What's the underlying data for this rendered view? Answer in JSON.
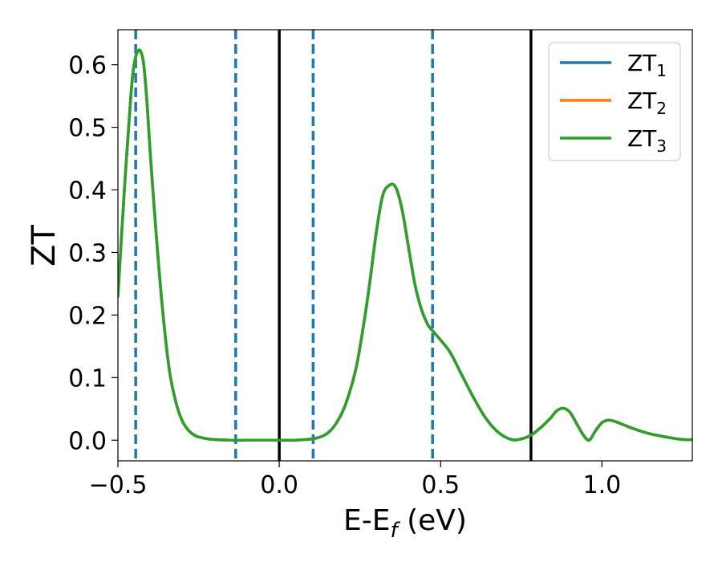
{
  "chart_data": {
    "type": "line",
    "xlabel_main": "E-E",
    "xlabel_sub": "f",
    "xlabel_tail": " (eV)",
    "ylabel": "ZT",
    "xlim": [
      -0.5,
      1.28
    ],
    "ylim": [
      -0.033,
      0.656
    ],
    "x_ticks": [
      -0.5,
      0.0,
      0.5,
      1.0
    ],
    "x_tick_labels": [
      "−0.5",
      "0.0",
      "0.5",
      "1.0"
    ],
    "y_ticks": [
      0.0,
      0.1,
      0.2,
      0.3,
      0.4,
      0.5,
      0.6
    ],
    "y_tick_labels": [
      "0.0",
      "0.1",
      "0.2",
      "0.3",
      "0.4",
      "0.5",
      "0.6"
    ],
    "grid": false,
    "legend_position": "top-right",
    "vlines_solid": [
      0.0,
      0.78
    ],
    "vlines_dashed": [
      -0.445,
      -0.135,
      0.105,
      0.475
    ],
    "x": [
      -0.5,
      -0.48,
      -0.46,
      -0.45,
      -0.44,
      -0.43,
      -0.42,
      -0.41,
      -0.4,
      -0.38,
      -0.36,
      -0.34,
      -0.32,
      -0.3,
      -0.28,
      -0.26,
      -0.24,
      -0.22,
      -0.2,
      -0.15,
      -0.1,
      0.0,
      0.05,
      0.1,
      0.12,
      0.14,
      0.16,
      0.18,
      0.2,
      0.22,
      0.24,
      0.26,
      0.28,
      0.3,
      0.32,
      0.34,
      0.36,
      0.38,
      0.4,
      0.42,
      0.44,
      0.46,
      0.475,
      0.5,
      0.53,
      0.56,
      0.6,
      0.64,
      0.68,
      0.72,
      0.75,
      0.78,
      0.81,
      0.84,
      0.86,
      0.88,
      0.9,
      0.92,
      0.94,
      0.96,
      0.98,
      1.0,
      1.02,
      1.04,
      1.06,
      1.1,
      1.15,
      1.2,
      1.25,
      1.28
    ],
    "series": [
      {
        "name": "ZT",
        "sub": "1",
        "color": "#1f77b4",
        "values": [
          0.23,
          0.4,
          0.55,
          0.6,
          0.62,
          0.622,
          0.6,
          0.54,
          0.46,
          0.32,
          0.2,
          0.11,
          0.06,
          0.03,
          0.015,
          0.007,
          0.004,
          0.002,
          0.001,
          0.0,
          0.0,
          0.0,
          0.0,
          0.002,
          0.004,
          0.008,
          0.016,
          0.03,
          0.05,
          0.08,
          0.12,
          0.18,
          0.25,
          0.33,
          0.39,
          0.407,
          0.405,
          0.37,
          0.31,
          0.25,
          0.21,
          0.185,
          0.175,
          0.16,
          0.14,
          0.11,
          0.07,
          0.035,
          0.012,
          0.001,
          0.002,
          0.008,
          0.02,
          0.035,
          0.047,
          0.051,
          0.045,
          0.028,
          0.01,
          0.0,
          0.015,
          0.028,
          0.032,
          0.03,
          0.026,
          0.018,
          0.01,
          0.005,
          0.001,
          0.001
        ]
      },
      {
        "name": "ZT",
        "sub": "2",
        "color": "#ff7f0e",
        "values": [
          0.23,
          0.4,
          0.55,
          0.6,
          0.62,
          0.622,
          0.6,
          0.54,
          0.46,
          0.32,
          0.2,
          0.11,
          0.06,
          0.03,
          0.015,
          0.007,
          0.004,
          0.002,
          0.001,
          0.0,
          0.0,
          0.0,
          0.0,
          0.002,
          0.004,
          0.008,
          0.016,
          0.03,
          0.05,
          0.08,
          0.12,
          0.18,
          0.25,
          0.33,
          0.39,
          0.407,
          0.405,
          0.37,
          0.31,
          0.25,
          0.21,
          0.185,
          0.175,
          0.16,
          0.14,
          0.11,
          0.07,
          0.035,
          0.012,
          0.001,
          0.002,
          0.008,
          0.02,
          0.035,
          0.047,
          0.051,
          0.045,
          0.028,
          0.01,
          0.0,
          0.015,
          0.028,
          0.032,
          0.03,
          0.026,
          0.018,
          0.01,
          0.005,
          0.001,
          0.001
        ]
      },
      {
        "name": "ZT",
        "sub": "3",
        "color": "#2ca02c",
        "values": [
          0.23,
          0.4,
          0.55,
          0.6,
          0.62,
          0.622,
          0.6,
          0.54,
          0.46,
          0.32,
          0.2,
          0.11,
          0.06,
          0.03,
          0.015,
          0.007,
          0.004,
          0.002,
          0.001,
          0.0,
          0.0,
          0.0,
          0.0,
          0.002,
          0.004,
          0.008,
          0.016,
          0.03,
          0.05,
          0.08,
          0.12,
          0.18,
          0.25,
          0.33,
          0.39,
          0.407,
          0.405,
          0.37,
          0.31,
          0.25,
          0.21,
          0.185,
          0.175,
          0.16,
          0.14,
          0.11,
          0.07,
          0.035,
          0.012,
          0.001,
          0.002,
          0.008,
          0.02,
          0.035,
          0.047,
          0.051,
          0.045,
          0.028,
          0.01,
          0.0,
          0.015,
          0.028,
          0.032,
          0.03,
          0.026,
          0.018,
          0.01,
          0.005,
          0.001,
          0.001
        ]
      }
    ]
  }
}
